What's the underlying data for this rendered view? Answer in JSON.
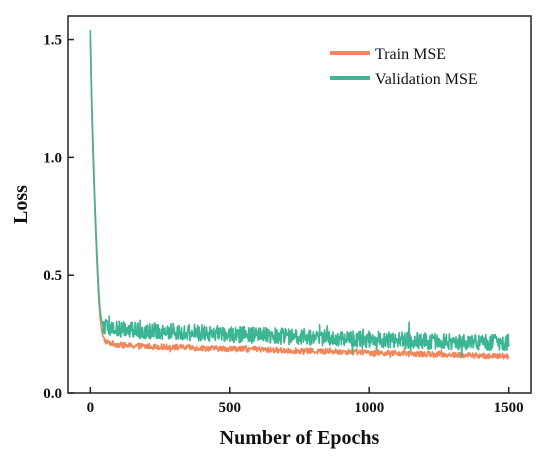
{
  "chart_data": {
    "type": "line",
    "xlabel": "Number of Epochs",
    "ylabel": "Loss",
    "xlim": [
      -80,
      1580
    ],
    "ylim": [
      0.0,
      1.6
    ],
    "xticks": [
      0,
      500,
      1000,
      1500
    ],
    "xtick_labels": [
      "0",
      "500",
      "1000",
      "1500"
    ],
    "yticks": [
      0.0,
      0.5,
      1.0,
      1.5
    ],
    "ytick_labels": [
      "0.0",
      "0.5",
      "1.0",
      "1.5"
    ],
    "legend_position": "top-right",
    "grid": false,
    "series": [
      {
        "name": "Train MSE",
        "color": "#f0875a",
        "x": [
          0,
          5,
          10,
          15,
          20,
          25,
          30,
          35,
          40,
          45,
          50,
          60,
          80,
          100,
          150,
          200,
          250,
          300,
          400,
          500,
          600,
          700,
          800,
          900,
          1000,
          1100,
          1200,
          1300,
          1400,
          1500
        ],
        "y": [
          1.5,
          1.2,
          1.0,
          0.82,
          0.66,
          0.52,
          0.4,
          0.32,
          0.27,
          0.24,
          0.225,
          0.215,
          0.21,
          0.205,
          0.2,
          0.198,
          0.196,
          0.195,
          0.19,
          0.188,
          0.185,
          0.18,
          0.178,
          0.175,
          0.172,
          0.168,
          0.165,
          0.162,
          0.158,
          0.155
        ]
      },
      {
        "name": "Validation MSE",
        "color": "#3bb593",
        "x": [
          0,
          5,
          10,
          15,
          20,
          25,
          30,
          35,
          40,
          45,
          50,
          60,
          80,
          100,
          150,
          200,
          250,
          300,
          400,
          500,
          600,
          700,
          800,
          900,
          1000,
          1100,
          1200,
          1300,
          1400,
          1500
        ],
        "y": [
          1.54,
          1.25,
          1.05,
          0.86,
          0.7,
          0.56,
          0.44,
          0.35,
          0.31,
          0.29,
          0.28,
          0.275,
          0.27,
          0.27,
          0.268,
          0.265,
          0.262,
          0.26,
          0.255,
          0.25,
          0.245,
          0.24,
          0.235,
          0.232,
          0.228,
          0.225,
          0.222,
          0.218,
          0.215,
          0.215
        ]
      }
    ]
  }
}
